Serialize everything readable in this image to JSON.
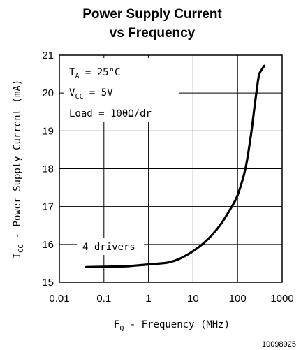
{
  "chart_data": {
    "type": "line",
    "title_lines": [
      "Power Supply Current",
      "vs Frequency"
    ],
    "xlabel": {
      "main": "F",
      "sub": "Q",
      "rest": " - Frequency (MHz)"
    },
    "ylabel": {
      "main": "I",
      "sub": "CC",
      "rest": " - Power Supply Current (mA)"
    },
    "x_scale": "log",
    "xlim": [
      0.01,
      1000
    ],
    "ylim": [
      15,
      21
    ],
    "x_ticks": [
      0.01,
      0.1,
      1,
      10,
      100,
      1000
    ],
    "x_tick_labels": [
      "0.01",
      "0.1",
      "1",
      "10",
      "100",
      "1000"
    ],
    "y_ticks": [
      15,
      16,
      17,
      18,
      19,
      20,
      21
    ],
    "y_tick_labels": [
      "15",
      "16",
      "17",
      "18",
      "19",
      "20",
      "21"
    ],
    "grid": true,
    "conditions": [
      {
        "main": "T",
        "sub": "A",
        "rest": " = 25°C"
      },
      {
        "main": "V",
        "sub": "CC",
        "rest": " = 5V"
      },
      {
        "main": "Load = 100Ω/dr",
        "sub": "",
        "rest": ""
      }
    ],
    "series": [
      {
        "label": "4 drivers",
        "x": [
          0.04,
          0.1,
          0.3,
          0.5,
          1,
          2,
          3,
          5,
          10,
          20,
          40,
          70,
          100,
          150,
          200,
          250,
          300,
          350,
          400
        ],
        "y": [
          15.4,
          15.41,
          15.42,
          15.44,
          15.47,
          15.5,
          15.53,
          15.62,
          15.82,
          16.1,
          16.5,
          16.95,
          17.3,
          18.0,
          18.9,
          19.8,
          20.45,
          20.62,
          20.72
        ]
      }
    ]
  },
  "figure_id": "10098925"
}
